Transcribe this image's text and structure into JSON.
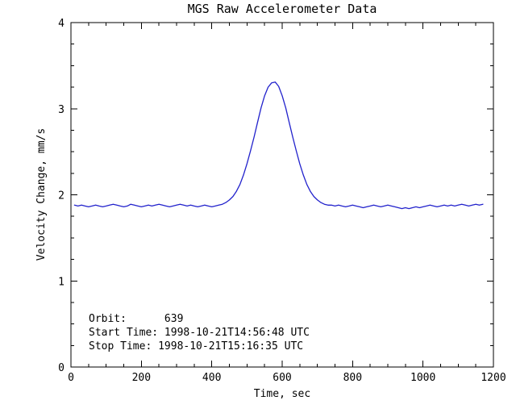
{
  "chart_data": {
    "type": "line",
    "title": "MGS Raw Accelerometer Data",
    "xlabel": "Time, sec",
    "ylabel": "Velocity Change, mm/s",
    "xlim": [
      0,
      1200
    ],
    "ylim": [
      0,
      4
    ],
    "xticks": [
      0,
      200,
      400,
      600,
      800,
      1000,
      1200
    ],
    "yticks": [
      0,
      1,
      2,
      3,
      4
    ],
    "x_minor_step": 50,
    "y_minor_step": 0.25,
    "grid": "off",
    "line_color": "#2222cc",
    "axis_color": "#000000",
    "background_color": "#ffffff",
    "series": [
      {
        "name": "velocity-change",
        "x": [
          10,
          20,
          30,
          40,
          50,
          60,
          70,
          80,
          90,
          100,
          110,
          120,
          130,
          140,
          150,
          160,
          170,
          180,
          190,
          200,
          210,
          220,
          230,
          240,
          250,
          260,
          270,
          280,
          290,
          300,
          310,
          320,
          330,
          340,
          350,
          360,
          370,
          380,
          390,
          400,
          410,
          420,
          430,
          440,
          450,
          460,
          470,
          480,
          490,
          500,
          510,
          520,
          530,
          540,
          550,
          560,
          570,
          580,
          590,
          600,
          610,
          620,
          630,
          640,
          650,
          660,
          670,
          680,
          690,
          700,
          710,
          720,
          730,
          740,
          750,
          760,
          770,
          780,
          790,
          800,
          810,
          820,
          830,
          840,
          850,
          860,
          870,
          880,
          890,
          900,
          910,
          920,
          930,
          940,
          950,
          960,
          970,
          980,
          990,
          1000,
          1010,
          1020,
          1030,
          1040,
          1050,
          1060,
          1070,
          1080,
          1090,
          1100,
          1110,
          1120,
          1130,
          1140,
          1150,
          1160,
          1170
        ],
        "values": [
          1.88,
          1.87,
          1.88,
          1.87,
          1.86,
          1.87,
          1.88,
          1.87,
          1.86,
          1.87,
          1.88,
          1.89,
          1.88,
          1.87,
          1.86,
          1.87,
          1.89,
          1.88,
          1.87,
          1.86,
          1.87,
          1.88,
          1.87,
          1.88,
          1.89,
          1.88,
          1.87,
          1.86,
          1.87,
          1.88,
          1.89,
          1.88,
          1.87,
          1.88,
          1.87,
          1.86,
          1.87,
          1.88,
          1.87,
          1.86,
          1.87,
          1.88,
          1.89,
          1.91,
          1.94,
          1.98,
          2.04,
          2.12,
          2.23,
          2.36,
          2.51,
          2.67,
          2.84,
          3.01,
          3.15,
          3.25,
          3.3,
          3.31,
          3.26,
          3.15,
          3.01,
          2.84,
          2.67,
          2.51,
          2.36,
          2.23,
          2.12,
          2.04,
          1.98,
          1.94,
          1.91,
          1.89,
          1.88,
          1.88,
          1.87,
          1.88,
          1.87,
          1.86,
          1.87,
          1.88,
          1.87,
          1.86,
          1.85,
          1.86,
          1.87,
          1.88,
          1.87,
          1.86,
          1.87,
          1.88,
          1.87,
          1.86,
          1.85,
          1.84,
          1.85,
          1.84,
          1.85,
          1.86,
          1.85,
          1.86,
          1.87,
          1.88,
          1.87,
          1.86,
          1.87,
          1.88,
          1.87,
          1.88,
          1.87,
          1.88,
          1.89,
          1.88,
          1.87,
          1.88,
          1.89,
          1.88,
          1.89
        ]
      }
    ],
    "annotations": [
      "Orbit:      639",
      "Start Time: 1998-10-21T14:56:48 UTC",
      "Stop Time: 1998-10-21T15:16:35 UTC"
    ]
  }
}
